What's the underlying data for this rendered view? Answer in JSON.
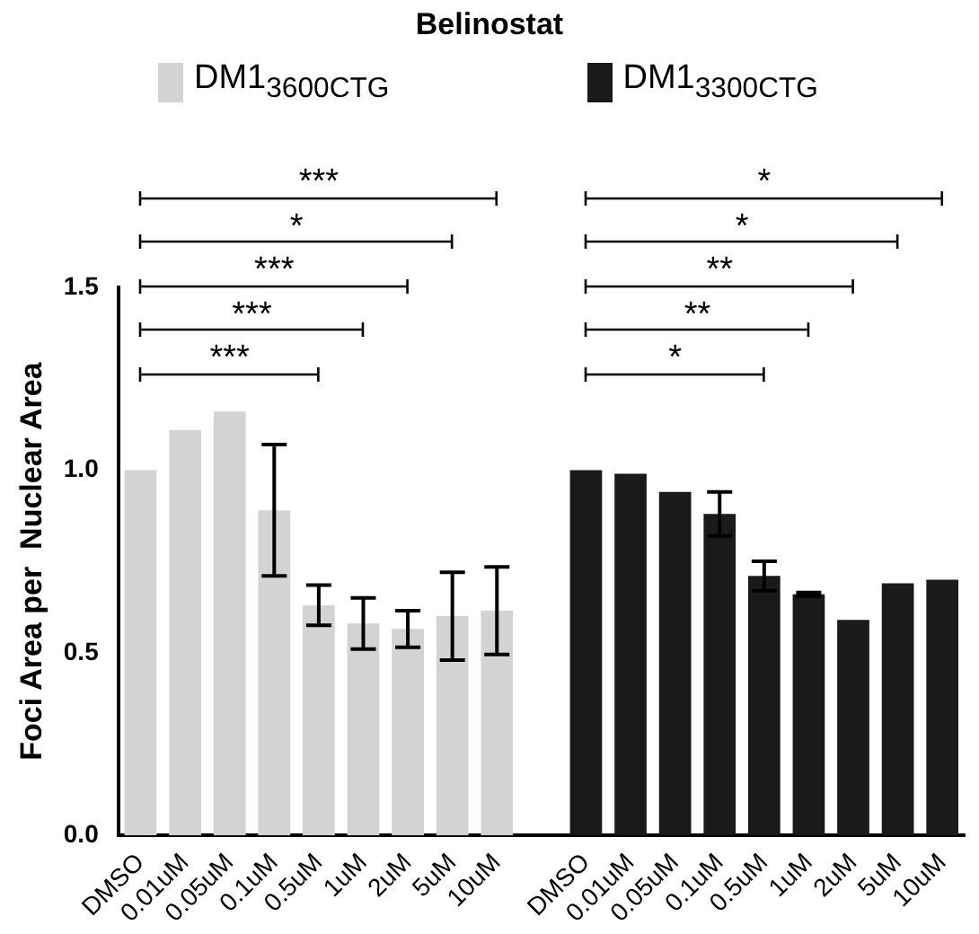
{
  "chart_data": {
    "type": "bar",
    "title": "Belinostat",
    "ylabel": "Foci Area per  Nuclear Area",
    "categories": [
      "DMSO",
      "0.01uM",
      "0.05uM",
      "0.1uM",
      "0.5uM",
      "1uM",
      "2uM",
      "5uM",
      "10uM",
      null,
      "DMSO",
      "0.01uM",
      "0.05uM",
      "0.1uM",
      "0.5uM",
      "1uM",
      "2uM",
      "5uM",
      "10uM"
    ],
    "series": [
      {
        "name": "DM1$_{3600CTG}$",
        "color": "#d3d3d3",
        "values": [
          1.0,
          1.11,
          1.16,
          0.89,
          0.63,
          0.58,
          0.565,
          0.6,
          0.615,
          null,
          null,
          null,
          null,
          null,
          null,
          null,
          null,
          null,
          null
        ],
        "errors": [
          null,
          null,
          null,
          0.18,
          0.055,
          0.07,
          0.05,
          0.12,
          0.12,
          null,
          null,
          null,
          null,
          null,
          null,
          null,
          null,
          null,
          null
        ]
      },
      {
        "name": "DM1$_{3300CTG}$",
        "color": "#1a1a1a",
        "values": [
          null,
          null,
          null,
          null,
          null,
          null,
          null,
          null,
          null,
          null,
          1.0,
          0.99,
          0.94,
          0.88,
          0.71,
          0.66,
          0.59,
          0.69,
          0.7
        ],
        "errors": [
          null,
          null,
          null,
          null,
          null,
          null,
          null,
          null,
          null,
          null,
          null,
          null,
          null,
          0.06,
          0.04,
          0.005,
          null,
          null,
          null
        ]
      }
    ],
    "ylim": [
      0,
      1.5
    ],
    "yticks": [
      {
        "value": 0,
        "label": "0.0"
      },
      {
        "value": 0.5,
        "label": "0.5"
      },
      {
        "value": 1,
        "label": "1.0"
      },
      {
        "value": 1.5,
        "label": "1.5"
      }
    ],
    "grid": false,
    "legend": "top",
    "annotations": [
      "***",
      "***",
      "***",
      "*",
      "***",
      "*",
      "**",
      "**",
      "*",
      "*"
    ]
  }
}
